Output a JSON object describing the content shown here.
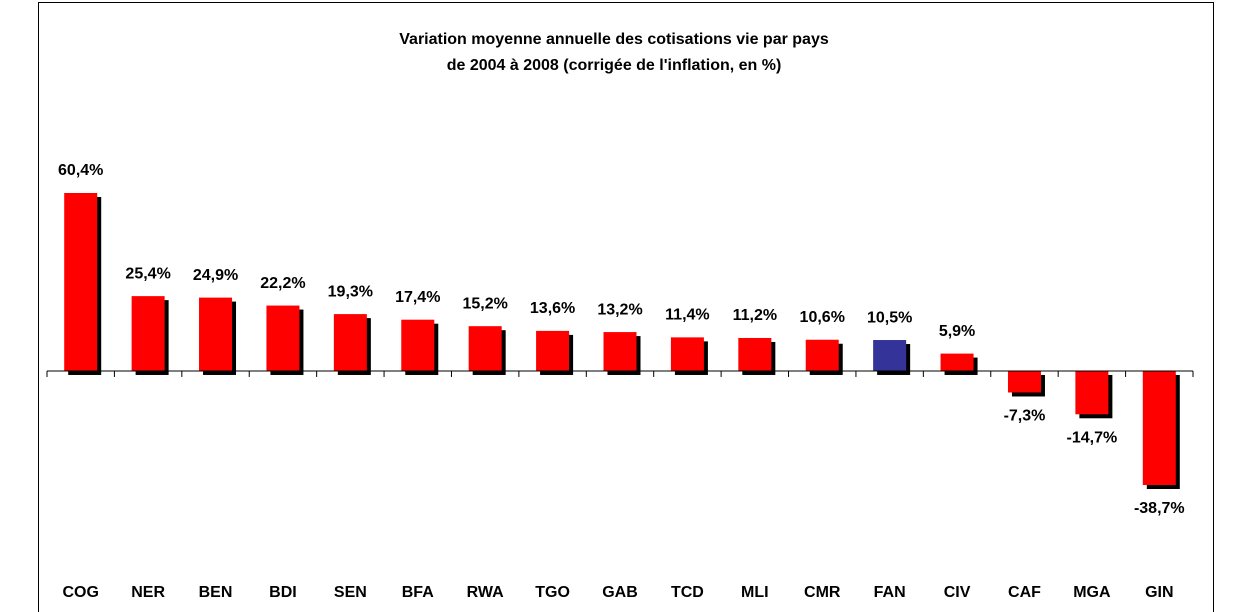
{
  "chart_data": {
    "type": "bar",
    "title": [
      "Variation moyenne annuelle des cotisations vie par pays",
      "de 2004 à 2008 (corrigée de l'inflation, en %)"
    ],
    "categories": [
      "COG",
      "NER",
      "BEN",
      "BDI",
      "SEN",
      "BFA",
      "RWA",
      "TGO",
      "GAB",
      "TCD",
      "MLI",
      "CMR",
      "FAN",
      "CIV",
      "CAF",
      "MGA",
      "GIN"
    ],
    "values": [
      60.4,
      25.4,
      24.9,
      22.2,
      19.3,
      17.4,
      15.2,
      13.6,
      13.2,
      11.4,
      11.2,
      10.6,
      10.5,
      5.9,
      -7.3,
      -14.7,
      -38.7
    ],
    "value_labels": [
      "60,4%",
      "25,4%",
      "24,9%",
      "22,2%",
      "19,3%",
      "17,4%",
      "15,2%",
      "13,6%",
      "13,2%",
      "11,4%",
      "11,2%",
      "10,6%",
      "10,5%",
      "5,9%",
      "-7,3%",
      "-14,7%",
      "-38,7%"
    ],
    "colors": [
      "#ff0000",
      "#ff0000",
      "#ff0000",
      "#ff0000",
      "#ff0000",
      "#ff0000",
      "#ff0000",
      "#ff0000",
      "#ff0000",
      "#ff0000",
      "#ff0000",
      "#ff0000",
      "#333399",
      "#ff0000",
      "#ff0000",
      "#ff0000",
      "#ff0000"
    ]
  }
}
